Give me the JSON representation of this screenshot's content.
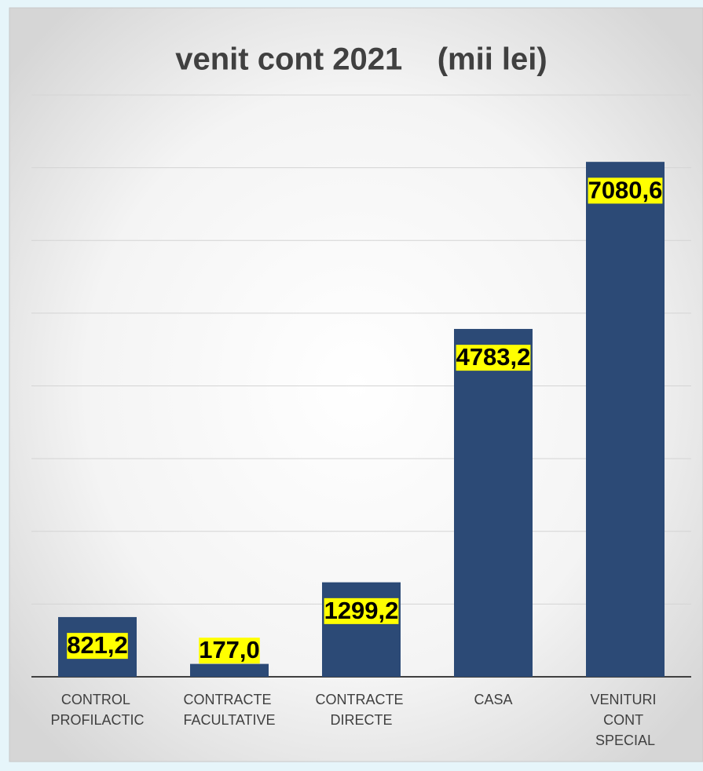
{
  "chart_data": {
    "type": "bar",
    "title": "venit cont 2021    (mii lei)",
    "categories": [
      "CONTROL PROFILACTIC",
      "CONTRACTE FACULTATIVE",
      "CONTRACTE DIRECTE",
      "CASA",
      "VENITURI CONT SPECIAL"
    ],
    "values": [
      821.2,
      177.0,
      1299.2,
      4783.2,
      7080.6
    ],
    "value_labels": [
      "821,2",
      "177,0",
      "1299,2",
      "4783,2",
      "7080,6"
    ],
    "color": "#2c4a76",
    "label_background": "#ffff00",
    "ylim": [
      0,
      8000
    ],
    "yticks": [
      0,
      1000,
      2000,
      3000,
      4000,
      5000,
      6000,
      7000,
      8000
    ],
    "grid": true
  }
}
